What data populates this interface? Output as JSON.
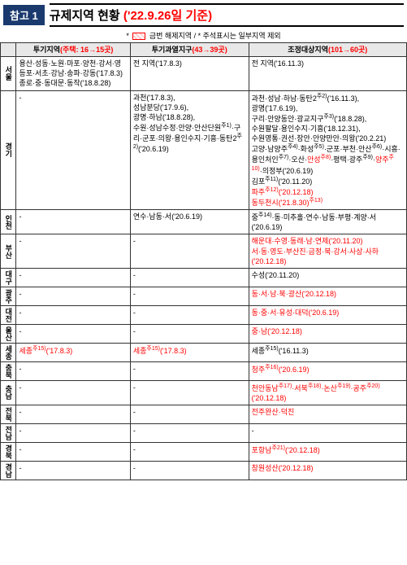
{
  "header": {
    "ref_label": "참고 1",
    "title_prefix": "규제지역 현황",
    "title_highlight": "('22.9.26일 기준)"
  },
  "legend": {
    "prefix": "*",
    "box_label": "금번 해제지역",
    "suffix": "/ * 주석표시는 일부지역 제외"
  },
  "columns": {
    "col1": {
      "label": "투기지역",
      "count_html": "(주택: 16→15곳)"
    },
    "col2": {
      "label": "투기과열지구",
      "count_html": "(43→39곳)"
    },
    "col3": {
      "label": "조정대상지역",
      "count_html": "(101→60곳)"
    }
  },
  "rows": [
    {
      "region": "서울",
      "c1": "용산·성동·노원·마포·양천·강서·영등포·서초·강남·송파·강동('17.8.3)\n종로·중·동대문·동작('18.8.28)",
      "c2": "전 지역('17.8.3)",
      "c3": "전 지역('16.11.3)"
    },
    {
      "region": "경기",
      "c1": "-",
      "c2": "과천('17.8.3),\n성남분당('17.9.6),\n광명·하남('18.8.28),\n수원·성남수정·안양·안산단원<span class='sup'>주1)</span>·구리·군포·의왕·용인수지·기흥·동탄2<span class='sup'>주2)</span>('20.6.19)",
      "c3": "과천·성남·하남·동탄2<span class='sup'>주2)</span>('16.11.3),\n광명('17.6.19),\n구리·안양동안·광교지구<span class='sup'>주3)</span>('18.8.28),\n수원팔달·용인수지·기흥('18.12.31),\n수원영통·권선·장안·안양만안·의왕('20.2.21)\n고양·남양주<span class='sup'>주4)</span>·화성<span class='sup'>주5)</span>·군포·부천·안산<span class='sup'>주6)</span>·시흥·용인처인<span class='sup'>주7)</span>·오산·<span class='red'>안성<span class='sup'>주8)</span></span>·평택·광주<span class='sup'>주9)</span>·<span class='red'>양주<span class='sup'>주10)</span></span>·의정부('20.6.19)\n김포<span class='sup'>주11)</span>('20.11.20)\n<span class='red'>파주<span class='sup'>주12)</span>('20.12.18)</span>\n<span class='red'>동두천시('21.8.30)<span class='sup'>주13)</span></span>"
    },
    {
      "region": "인천",
      "c1": "-",
      "c2": "연수·남동·서('20.6.19)",
      "c3": "중<span class='sup'>주14)</span>·동·미추홀·연수·남동·부평·계양·서('20.6.19)"
    },
    {
      "region": "부산",
      "c1": "-",
      "c2": "-",
      "c3": "<span class='red'>해운대·수영·동래·남·연제('20.11.20)\n서·동·영도·부산진·금정·북·강서·사상·사하('20.12.18)</span>"
    },
    {
      "region": "대구",
      "c1": "-",
      "c2": "-",
      "c3": "수성('20.11.20)"
    },
    {
      "region": "광주",
      "c1": "-",
      "c2": "-",
      "c3": "<span class='red'>동·서·남·북·광산('20.12.18)</span>"
    },
    {
      "region": "대전",
      "c1": "-",
      "c2": "-",
      "c3": "<span class='red'>동·중·서·유성·대덕('20.6.19)</span>"
    },
    {
      "region": "울산",
      "c1": "-",
      "c2": "-",
      "c3": "<span class='red'>중·남('20.12.18)</span>"
    },
    {
      "region": "세종",
      "c1": "<span class='red'>세종<span class='sup'>주15)</span>('17.8.3)</span>",
      "c2": "<span class='red'>세종<span class='sup'>주15)</span>('17.8.3)</span>",
      "c3": "세종<span class='sup'>주15)</span>('16.11.3)"
    },
    {
      "region": "충북",
      "c1": "-",
      "c2": "-",
      "c3": "<span class='red'>청주<span class='sup'>주16)</span>('20.6.19)</span>"
    },
    {
      "region": "충남",
      "c1": "-",
      "c2": "-",
      "c3": "<span class='red'>천안동남<span class='sup'>주17)</span>·서북<span class='sup'>주18)</span>·논산<span class='sup'>주19)</span>·공주<span class='sup'>주20)</span>('20.12.18)</span>"
    },
    {
      "region": "전북",
      "c1": "-",
      "c2": "-",
      "c3": "<span class='red'>전주완산·덕진</span>"
    },
    {
      "region": "전남",
      "c1": "-",
      "c2": "-",
      "c3": "-"
    },
    {
      "region": "경북",
      "c1": "-",
      "c2": "-",
      "c3": "<span class='red'>포항남<span class='sup'>주21)</span>('20.12.18)</span>"
    },
    {
      "region": "경남",
      "c1": "-",
      "c2": "-",
      "c3": "<span class='red'>창원성산('20.12.18)</span>"
    }
  ]
}
